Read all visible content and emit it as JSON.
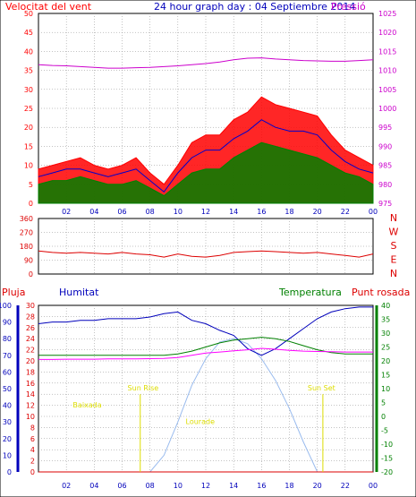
{
  "colors": {
    "wind": "#ff0000",
    "gust": "#0000cc",
    "avg": "#008000",
    "pressure": "#cc00cc",
    "dir": "#dd0000",
    "rain": "#dd0000",
    "hum": "#0000bb",
    "temp": "#008000",
    "dew": "#ff00ff",
    "sun": "#99bbee",
    "label_yellow": "#dddd00",
    "grid": "#888888"
  },
  "chart_data": [
    {
      "type": "line",
      "title": "24 hour graph day : 04 Septiembre 2014",
      "left_label": "Velocitat del vent",
      "right_label": "Pressió",
      "y_ticks": [
        0,
        5,
        10,
        15,
        20,
        25,
        30,
        35,
        40,
        45,
        50
      ],
      "y2_ticks": [
        975,
        980,
        985,
        990,
        995,
        1000,
        1005,
        1010,
        1015,
        1020,
        1025
      ],
      "ylim": [
        0,
        50
      ],
      "y2lim": [
        975,
        1025
      ],
      "x_ticks": [
        "02",
        "04",
        "06",
        "08",
        "10",
        "12",
        "14",
        "16",
        "18",
        "20",
        "22",
        "00"
      ],
      "x": [
        0,
        1,
        2,
        3,
        4,
        5,
        6,
        7,
        8,
        9,
        10,
        11,
        12,
        13,
        14,
        15,
        16,
        17,
        18,
        19,
        20,
        21,
        22,
        23,
        24
      ],
      "series": [
        {
          "key": "wind_gust",
          "values": [
            9,
            10,
            11,
            12,
            10,
            9,
            10,
            12,
            8,
            5,
            10,
            16,
            18,
            18,
            22,
            24,
            28,
            26,
            25,
            24,
            23,
            18,
            14,
            12,
            10
          ]
        },
        {
          "key": "wind_speed",
          "values": [
            7,
            8,
            9,
            9,
            8,
            7,
            8,
            9,
            6,
            3,
            8,
            12,
            14,
            14,
            17,
            19,
            22,
            20,
            19,
            19,
            18,
            14,
            11,
            9,
            8
          ]
        },
        {
          "key": "wind_avg",
          "values": [
            5,
            6,
            6,
            7,
            6,
            5,
            5,
            6,
            4,
            2,
            5,
            8,
            9,
            9,
            12,
            14,
            16,
            15,
            14,
            13,
            12,
            10,
            8,
            7,
            5
          ]
        },
        {
          "key": "pressure",
          "label": "Pressió",
          "values": [
            1011.5,
            1011.3,
            1011.2,
            1011,
            1010.8,
            1010.6,
            1010.6,
            1010.7,
            1010.8,
            1011,
            1011.2,
            1011.5,
            1011.8,
            1012.2,
            1012.8,
            1013.2,
            1013.3,
            1013,
            1012.8,
            1012.6,
            1012.5,
            1012.4,
            1012.4,
            1012.6,
            1012.8
          ]
        }
      ]
    },
    {
      "type": "line",
      "y_ticks": [
        0,
        90,
        180,
        270,
        360
      ],
      "ylim": [
        0,
        360
      ],
      "compass": [
        "N",
        "W",
        "S",
        "E",
        "N"
      ],
      "x": [
        0,
        1,
        2,
        3,
        4,
        5,
        6,
        7,
        8,
        9,
        10,
        11,
        12,
        13,
        14,
        15,
        16,
        17,
        18,
        19,
        20,
        21,
        22,
        23,
        24
      ],
      "series": [
        {
          "key": "wind_dir",
          "values": [
            150,
            140,
            135,
            140,
            135,
            130,
            140,
            130,
            125,
            110,
            130,
            115,
            110,
            120,
            140,
            145,
            150,
            145,
            140,
            135,
            140,
            130,
            120,
            110,
            130
          ]
        }
      ]
    },
    {
      "type": "line",
      "labels": {
        "rain": "Pluja",
        "humidity": "Humitat",
        "temperature": "Temperatura",
        "dewpoint": "Punt rosada"
      },
      "rain_ticks": [
        0,
        2,
        4,
        6,
        8,
        10,
        12,
        14,
        16,
        18,
        20,
        22,
        24,
        26,
        28,
        30
      ],
      "hum_ticks": [
        0,
        10,
        20,
        30,
        40,
        50,
        60,
        70,
        80,
        90,
        100
      ],
      "temp_ticks": [
        -20,
        -15,
        -10,
        -5,
        0,
        5,
        10,
        15,
        20,
        25,
        30,
        35,
        40
      ],
      "x_ticks": [
        "02",
        "04",
        "06",
        "08",
        "10",
        "12",
        "14",
        "16",
        "18",
        "20",
        "22",
        "00"
      ],
      "x": [
        0,
        1,
        2,
        3,
        4,
        5,
        6,
        7,
        8,
        9,
        10,
        11,
        12,
        13,
        14,
        15,
        16,
        17,
        18,
        19,
        20,
        21,
        22,
        23,
        24
      ],
      "series": [
        {
          "key": "humidity",
          "values": [
            89,
            90,
            90,
            91,
            91,
            92,
            92,
            92,
            93,
            95,
            96,
            91,
            89,
            85,
            82,
            74,
            70,
            74,
            80,
            86,
            92,
            96,
            98,
            99,
            99
          ]
        },
        {
          "key": "temperature",
          "values": [
            22,
            22,
            22,
            22,
            22,
            22,
            22,
            22,
            22,
            22,
            22.5,
            23.5,
            25,
            26.5,
            27.5,
            28,
            28.5,
            28,
            27,
            25.5,
            24,
            23,
            22.5,
            22.5,
            22.5
          ]
        },
        {
          "key": "dewpoint",
          "values": [
            20.5,
            20.5,
            20.6,
            20.6,
            20.6,
            20.7,
            20.7,
            20.7,
            20.8,
            20.9,
            21.2,
            22,
            22.8,
            23.2,
            23.6,
            24,
            24.5,
            24.2,
            23.8,
            23.5,
            23.4,
            23.3,
            23.2,
            23.2,
            23.2
          ]
        },
        {
          "key": "solar",
          "values": [
            0,
            0,
            0,
            0,
            0,
            0,
            0,
            0,
            0,
            10,
            30,
            52,
            68,
            78,
            80,
            77,
            68,
            55,
            38,
            18,
            0,
            0,
            0,
            0,
            0
          ]
        },
        {
          "key": "rain",
          "values": [
            0,
            0,
            0,
            0,
            0,
            0,
            0,
            0,
            0,
            0,
            0,
            0,
            0,
            0,
            0,
            0,
            0,
            0,
            0,
            0,
            0,
            0,
            0,
            0,
            0
          ]
        }
      ],
      "annotations": [
        {
          "text": "Baixada",
          "x": 3.5,
          "y": 11
        },
        {
          "text": "Sun Rise",
          "x": 7.5,
          "y": 14
        },
        {
          "text": "Lourade",
          "x": 11.6,
          "y": 8
        },
        {
          "text": "Sun Set",
          "x": 20.3,
          "y": 14
        }
      ],
      "sunrise_hour": 7.3,
      "sunset_hour": 20.4
    }
  ]
}
